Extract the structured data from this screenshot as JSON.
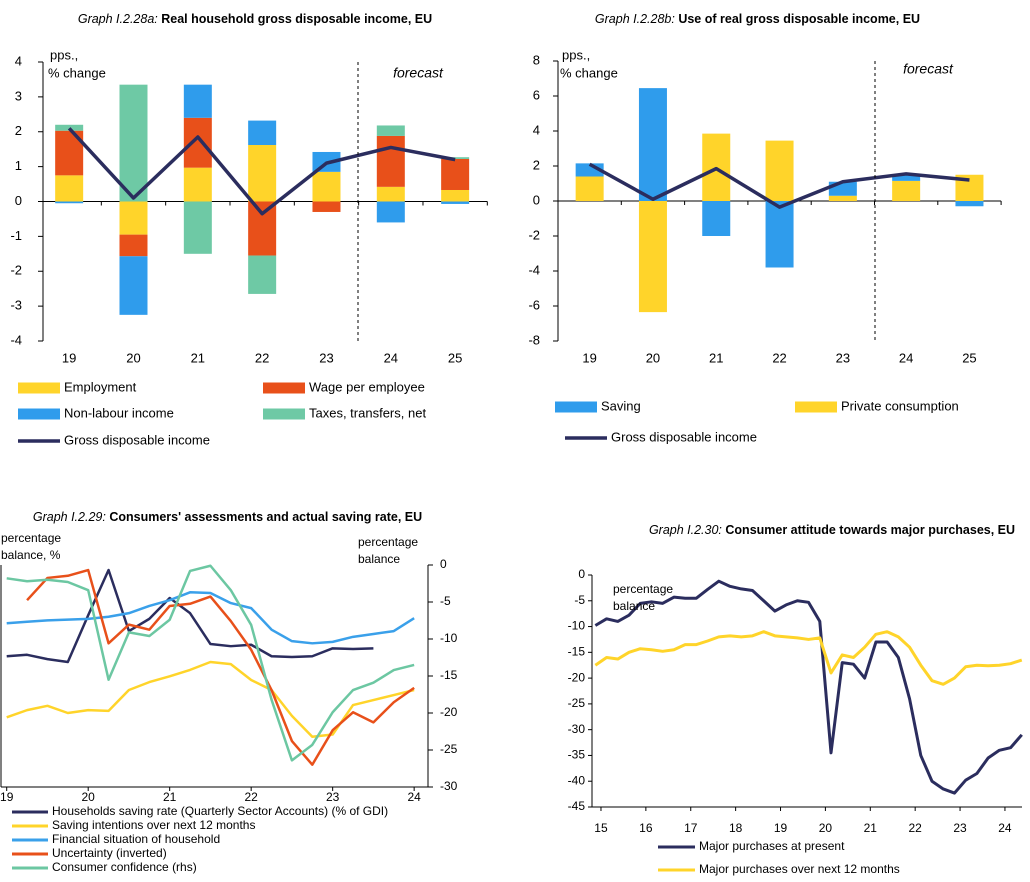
{
  "chart_data": [
    {
      "type": "bar",
      "graph_label": "Graph I.2.28a:",
      "title": "Real household gross disposable income, EU",
      "ylabel": [
        "pps.,",
        "% change"
      ],
      "annotation": "forecast",
      "categories": [
        "19",
        "20",
        "21",
        "22",
        "23",
        "24",
        "25"
      ],
      "ylim": [
        -4,
        4
      ],
      "yticks": [
        -4,
        -3,
        -2,
        -1,
        0,
        1,
        2,
        3,
        4
      ],
      "series": [
        {
          "name": "Employment",
          "color": "#ffd42a",
          "values": [
            0.75,
            -0.95,
            0.97,
            1.62,
            0.85,
            0.42,
            0.33
          ]
        },
        {
          "name": "Wage per employee",
          "color": "#e8501a",
          "values": [
            1.28,
            -0.62,
            1.43,
            -1.55,
            -0.3,
            1.46,
            0.89
          ]
        },
        {
          "name": "Non-labour income",
          "color": "#2f9cec",
          "values": [
            -0.05,
            -1.68,
            0.95,
            0.7,
            0.57,
            -0.6,
            -0.07
          ]
        },
        {
          "name": "Taxes, transfers, net",
          "color": "#6ec9a5",
          "values": [
            0.17,
            3.35,
            -1.5,
            -1.1,
            0,
            0.3,
            0.05
          ]
        },
        {
          "name": "Gross disposable income",
          "type": "line",
          "color": "#2b2d5e",
          "values": [
            2.1,
            0.1,
            1.85,
            -0.35,
            1.1,
            1.55,
            1.2
          ]
        }
      ]
    },
    {
      "type": "bar",
      "graph_label": "Graph I.2.28b:",
      "title": "Use of real gross disposable income, EU",
      "ylabel": [
        "pps.,",
        "% change"
      ],
      "annotation": "forecast",
      "categories": [
        "19",
        "20",
        "21",
        "22",
        "23",
        "24",
        "25"
      ],
      "ylim": [
        -8,
        8
      ],
      "yticks": [
        -8,
        -6,
        -4,
        -2,
        0,
        2,
        4,
        6,
        8
      ],
      "series": [
        {
          "name": "Saving",
          "color": "#2f9cec",
          "values": [
            0.75,
            6.45,
            -2.0,
            -3.8,
            0.8,
            0.35,
            -0.3
          ]
        },
        {
          "name": "Private consumption",
          "color": "#ffd42a",
          "values": [
            1.4,
            -6.35,
            3.85,
            3.45,
            0.3,
            1.15,
            1.5
          ]
        },
        {
          "name": "Gross disposable income",
          "type": "line",
          "color": "#2b2d5e",
          "values": [
            2.1,
            0.1,
            1.85,
            -0.35,
            1.1,
            1.55,
            1.2
          ]
        }
      ]
    },
    {
      "type": "line",
      "graph_label": "Graph I.2.29:",
      "title": "Consumers' assessments and actual saving rate, EU",
      "ylabel": [
        "percentage",
        "balance, %"
      ],
      "y2label": [
        "percentage",
        "balance"
      ],
      "x": [
        19,
        19.25,
        19.5,
        19.75,
        20,
        20.25,
        20.5,
        20.75,
        21,
        21.25,
        21.5,
        21.75,
        22,
        22.25,
        22.5,
        22.75,
        23,
        23.25,
        23.5,
        23.75,
        24
      ],
      "xlim": [
        18.93,
        24.17
      ],
      "xticks": [
        19,
        20,
        21,
        22,
        23,
        24
      ],
      "ylim": [
        -5.3,
        25.6
      ],
      "y2lim": [
        -30,
        0
      ],
      "y2ticks": [
        0,
        -5,
        -10,
        -15,
        -20,
        -25,
        -30
      ],
      "series": [
        {
          "name": "Households saving rate (Quarterly Sector Accounts) (% of GDI)",
          "color": "#2b2d5e",
          "values": [
            12.9,
            13.1,
            12.5,
            12.1,
            18.6,
            24.9,
            16.4,
            18.1,
            21.0,
            18.9,
            14.6,
            14.3,
            14.5,
            12.9,
            12.8,
            12.9,
            14.0,
            13.9,
            14.0,
            null,
            null
          ]
        },
        {
          "name": "Saving intentions over next 12 months",
          "color": "#ffd42a",
          "values": [
            4.4,
            5.4,
            6.0,
            5.0,
            5.4,
            5.3,
            8.2,
            9.3,
            10.1,
            11.0,
            12.1,
            11.8,
            9.6,
            8.2,
            4.6,
            1.7,
            2.0,
            6.1,
            6.8,
            7.5,
            8.2
          ]
        },
        {
          "name": "Financial situation of household",
          "color": "#3aa0ea",
          "values": [
            17.5,
            17.7,
            17.9,
            18.0,
            18.1,
            18.4,
            18.9,
            19.9,
            20.7,
            21.8,
            21.7,
            20.3,
            19.6,
            16.6,
            15.0,
            14.7,
            14.9,
            15.6,
            16.0,
            16.4,
            18.2
          ]
        },
        {
          "name": "Uncertainty (inverted)",
          "color": "#e8501a",
          "values": [
            null,
            20.7,
            23.8,
            24.1,
            24.9,
            14.7,
            17.3,
            16.6,
            19.9,
            20.2,
            21.2,
            17.8,
            13.8,
            8.2,
            1.1,
            -2.2,
            2.6,
            5.1,
            3.7,
            6.5,
            8.5
          ]
        },
        {
          "name": "Consumer confidence (rhs)",
          "color": "#6cc7a2",
          "axis": "y2",
          "values": [
            -1.8,
            -2.2,
            -2.0,
            -2.3,
            -3.4,
            -15.5,
            -9.1,
            -9.6,
            -7.4,
            -0.8,
            -0.1,
            -3.4,
            -8.1,
            -18.2,
            -26.4,
            -24.3,
            -19.9,
            -16.9,
            -15.9,
            -14.2,
            -13.5
          ]
        }
      ]
    },
    {
      "type": "line",
      "graph_label": "Graph I.2.30:",
      "title": "Consumer attitude towards major purchases, EU",
      "ylabel": [
        "percentage",
        "balance"
      ],
      "x": [
        14.875,
        15.125,
        15.375,
        15.625,
        15.875,
        16.125,
        16.375,
        16.625,
        16.875,
        17.125,
        17.375,
        17.625,
        17.875,
        18.125,
        18.375,
        18.625,
        18.875,
        19.125,
        19.375,
        19.625,
        19.875,
        20.125,
        20.375,
        20.625,
        20.875,
        21.125,
        21.375,
        21.625,
        21.875,
        22.125,
        22.375,
        22.625,
        22.875,
        23.125,
        23.375,
        23.625,
        23.875,
        24.125,
        24.375
      ],
      "xlim": [
        14.8,
        24.38
      ],
      "xticks": [
        15,
        16,
        17,
        18,
        19,
        20,
        21,
        22,
        23,
        24
      ],
      "ylim": [
        -45,
        0
      ],
      "yticks": [
        0,
        -5,
        -10,
        -15,
        -20,
        -25,
        -30,
        -35,
        -40,
        -45
      ],
      "series": [
        {
          "name": "Major purchases at present",
          "color": "#2b2d5e",
          "values": [
            -9.8,
            -8.5,
            -9.0,
            -7.8,
            -5.5,
            -5.2,
            -5.5,
            -4.3,
            -4.5,
            -4.5,
            -2.8,
            -1.2,
            -2.2,
            -2.7,
            -3.0,
            -5.0,
            -7.0,
            -5.8,
            -5.0,
            -5.3,
            -9.0,
            -34.5,
            -17.0,
            -17.3,
            -20.0,
            -13.0,
            -13.0,
            -16.0,
            -24.0,
            -35.0,
            -40.0,
            -41.5,
            -42.3,
            -39.8,
            -38.5,
            -35.5,
            -34.0,
            -33.5,
            -31.0
          ]
        },
        {
          "name": "Major purchases over next 12 months",
          "color": "#ffd42a",
          "values": [
            -17.5,
            -16.0,
            -16.3,
            -15.0,
            -14.3,
            -14.5,
            -14.8,
            -14.5,
            -13.5,
            -13.5,
            -12.8,
            -12.0,
            -11.8,
            -12.0,
            -11.8,
            -11.0,
            -11.8,
            -12.0,
            -12.2,
            -12.5,
            -12.2,
            -19.0,
            -15.5,
            -16.0,
            -14.0,
            -11.5,
            -11.0,
            -12.0,
            -14.0,
            -17.5,
            -20.5,
            -21.2,
            -20.0,
            -17.8,
            -17.5,
            -17.6,
            -17.5,
            -17.2,
            -16.5
          ]
        }
      ]
    }
  ]
}
